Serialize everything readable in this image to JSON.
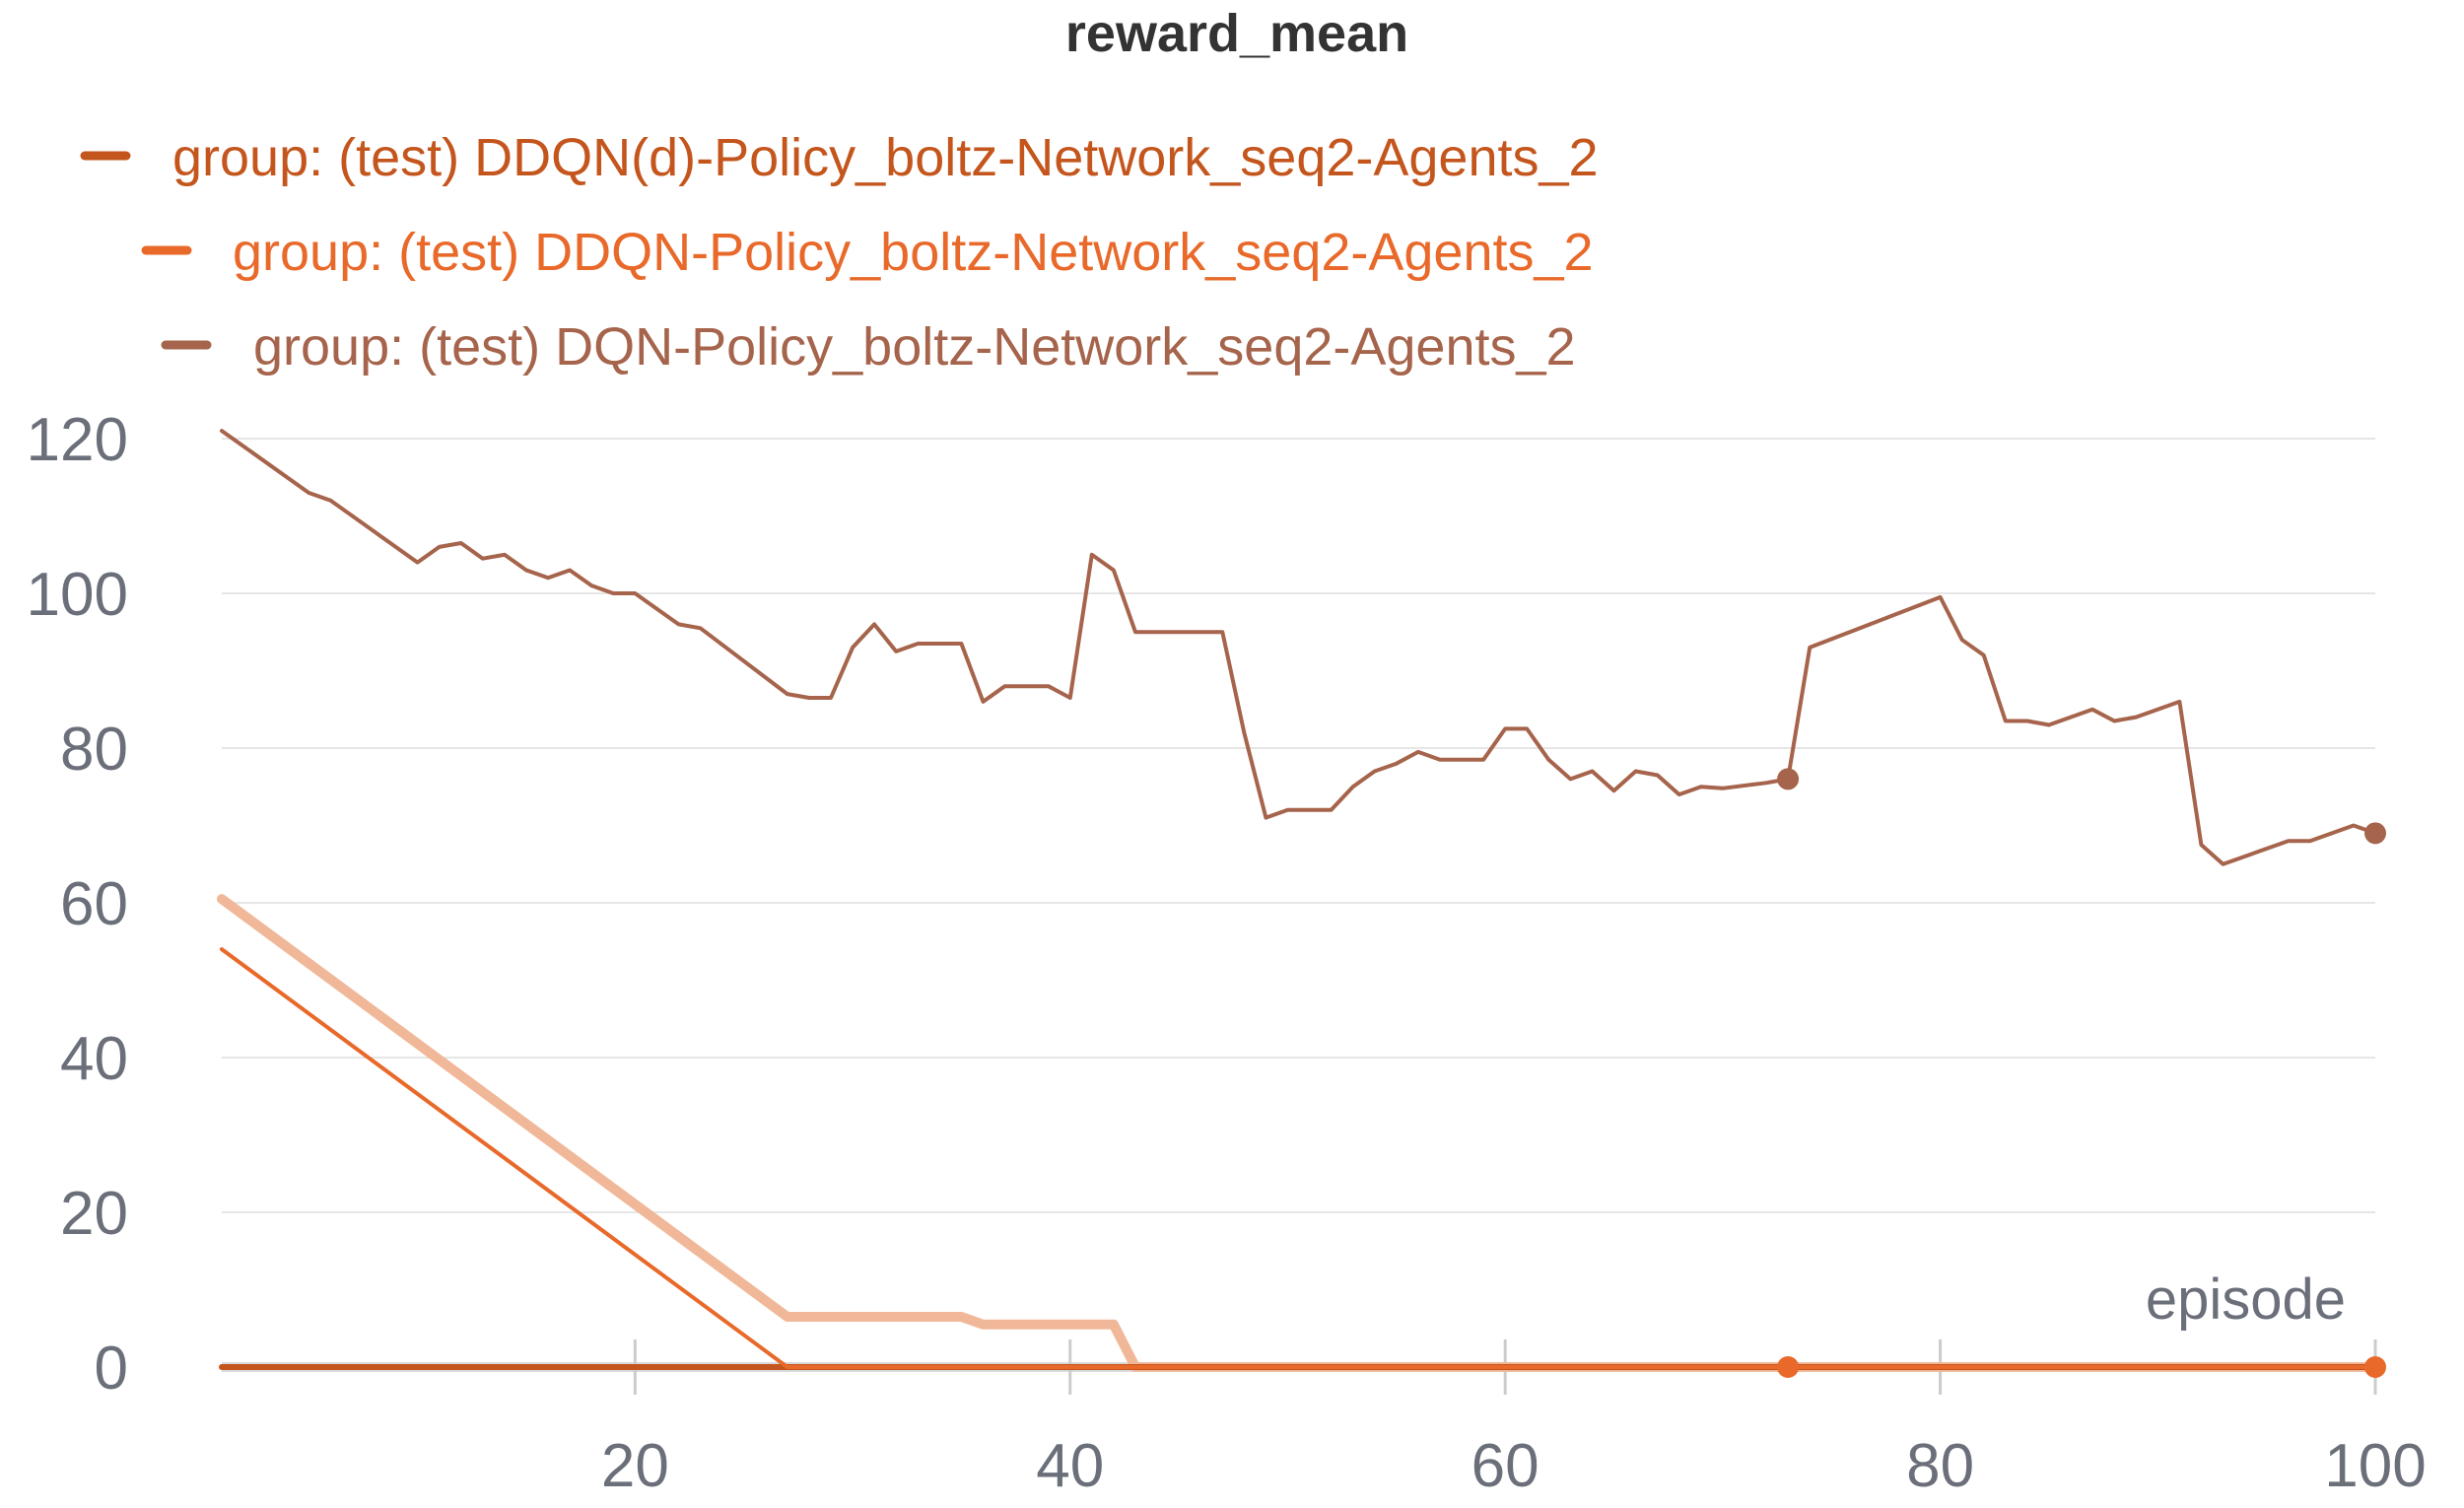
{
  "chart_data": {
    "type": "line",
    "title": "reward_mean",
    "xlabel": "episode",
    "ylabel": "",
    "xlim": [
      1,
      100
    ],
    "ylim": [
      0,
      120
    ],
    "x_ticks": [
      20,
      40,
      60,
      80,
      100
    ],
    "y_ticks": [
      0,
      20,
      40,
      60,
      80,
      100,
      120
    ],
    "grid": "horizontal",
    "legend_position": "top-left",
    "series": [
      {
        "name": "group: (test) DDQN(d)-Policy_boltz-Network_seq2-Agents_2",
        "color": "#c4561d",
        "points": [
          [
            1,
            0
          ],
          [
            100,
            0
          ]
        ]
      },
      {
        "name": "group: (test) DDQN-Policy_boltz-Network_seq2-Agents_2",
        "color": "#e8692a",
        "points": [
          [
            1,
            54
          ],
          [
            27,
            0
          ],
          [
            73,
            0
          ],
          [
            100,
            0
          ]
        ],
        "markers": [
          [
            73,
            0
          ],
          [
            100,
            0
          ]
        ]
      },
      {
        "name": "group: (test) DQN-Policy_boltz-Network_seq2-Agents_2",
        "color": "#a5644b",
        "points": [
          [
            1,
            121
          ],
          [
            5,
            113
          ],
          [
            6,
            112
          ],
          [
            10,
            104
          ],
          [
            11,
            106
          ],
          [
            12,
            106.5
          ],
          [
            13,
            104.5
          ],
          [
            14,
            105
          ],
          [
            15,
            103
          ],
          [
            16,
            102
          ],
          [
            17,
            103
          ],
          [
            18,
            101
          ],
          [
            19,
            100
          ],
          [
            20,
            100
          ],
          [
            22,
            96
          ],
          [
            23,
            95.5
          ],
          [
            27,
            87
          ],
          [
            28,
            86.5
          ],
          [
            29,
            86.5
          ],
          [
            30,
            93
          ],
          [
            31,
            96
          ],
          [
            32,
            92.5
          ],
          [
            33,
            93.5
          ],
          [
            35,
            93.5
          ],
          [
            36,
            86
          ],
          [
            37,
            88
          ],
          [
            39,
            88
          ],
          [
            40,
            86.5
          ],
          [
            41,
            105
          ],
          [
            42,
            103
          ],
          [
            43,
            95
          ],
          [
            46,
            95
          ],
          [
            47,
            95
          ],
          [
            48,
            82
          ],
          [
            49,
            71
          ],
          [
            50,
            72
          ],
          [
            51,
            72
          ],
          [
            52,
            72
          ],
          [
            53,
            75
          ],
          [
            54,
            77
          ],
          [
            55,
            78
          ],
          [
            56,
            79.5
          ],
          [
            57,
            78.5
          ],
          [
            59,
            78.5
          ],
          [
            60,
            82.5
          ],
          [
            61,
            82.5
          ],
          [
            62,
            78.5
          ],
          [
            63,
            76
          ],
          [
            64,
            77
          ],
          [
            65,
            74.5
          ],
          [
            66,
            77
          ],
          [
            67,
            76.5
          ],
          [
            68,
            74
          ],
          [
            69,
            75
          ],
          [
            70,
            74.8
          ],
          [
            72,
            75.5
          ],
          [
            73,
            76
          ],
          [
            74,
            93
          ],
          [
            80,
            99.5
          ],
          [
            81,
            94
          ],
          [
            82,
            92
          ],
          [
            83,
            83.5
          ],
          [
            84,
            83.5
          ],
          [
            85,
            83
          ],
          [
            86,
            84
          ],
          [
            87,
            85
          ],
          [
            88,
            83.5
          ],
          [
            89,
            84
          ],
          [
            91,
            86
          ],
          [
            92,
            67.5
          ],
          [
            93,
            65
          ],
          [
            96,
            68
          ],
          [
            97,
            68
          ],
          [
            98,
            69
          ],
          [
            99,
            70
          ],
          [
            100,
            69
          ]
        ],
        "markers": [
          [
            73,
            76
          ],
          [
            100,
            69
          ]
        ]
      },
      {
        "name": "",
        "color": "#f0b898",
        "points": [
          [
            1,
            60.5
          ],
          [
            27,
            6.5
          ],
          [
            35,
            6.5
          ],
          [
            36,
            5.5
          ],
          [
            42,
            5.5
          ],
          [
            43,
            0
          ],
          [
            100,
            0
          ]
        ]
      }
    ]
  }
}
